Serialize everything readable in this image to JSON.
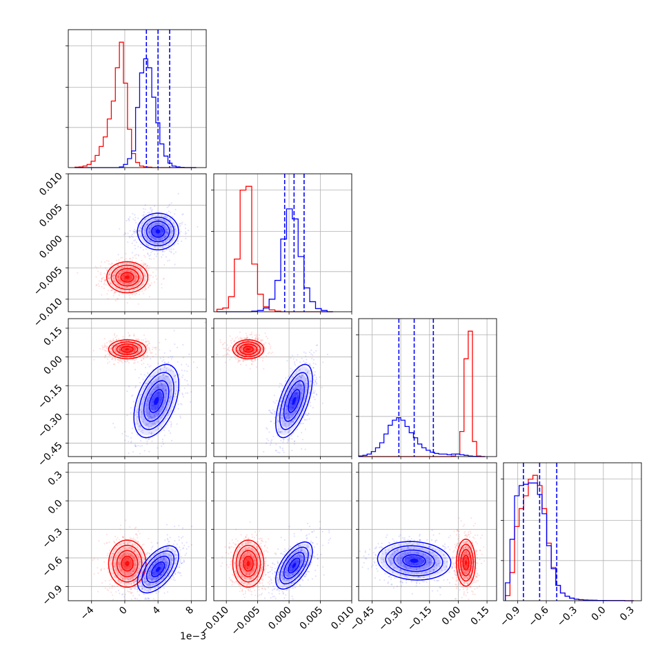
{
  "chart_data": {
    "type": "corner",
    "colors": {
      "red": "#ff0000",
      "blue": "#0000ff"
    },
    "grid": true,
    "parameters": [
      {
        "range": [
          -6.8,
          9.8
        ],
        "ticks": [
          -4,
          0,
          4,
          8
        ],
        "tick_labels": [
          "−4",
          "0",
          "4",
          "8"
        ],
        "offset_label": "1e−3"
      },
      {
        "range": [
          -0.012,
          0.01
        ],
        "ticks": [
          -0.01,
          -0.005,
          0.0,
          0.005,
          0.01
        ],
        "tick_labels": [
          "−0.010",
          "−0.005",
          "0.000",
          "0.005",
          "0.010"
        ]
      },
      {
        "range": [
          -0.52,
          0.2
        ],
        "ticks": [
          -0.45,
          -0.3,
          -0.15,
          0.0,
          0.15
        ],
        "tick_labels": [
          "−0.45",
          "−0.30",
          "−0.15",
          "0.00",
          "0.15"
        ]
      },
      {
        "range": [
          -1.05,
          0.4
        ],
        "ticks": [
          -0.9,
          -0.6,
          -0.3,
          0.0,
          0.3
        ],
        "tick_labels": [
          "−0.9",
          "−0.6",
          "−0.3",
          "0.0",
          "0.3"
        ]
      }
    ],
    "marginals": [
      {
        "param": 0,
        "quantile_lines_blue": [
          2.6,
          4.0,
          5.4
        ],
        "red": {
          "edges": [
            -6.0,
            8.6
          ],
          "counts": [
            0.3,
            0.5,
            1.2,
            2.5,
            5.0,
            9.5,
            16.5,
            24.0,
            38.0,
            52.0,
            78.0,
            98.0,
            66.0,
            30.0,
            11.0,
            4.0,
            1.2,
            0.6,
            0.3,
            0.0,
            0.0,
            0.0,
            0.0,
            0.0,
            0.0,
            0.0,
            0.0,
            0.0,
            0.0,
            0.0
          ]
        },
        "blue": {
          "edges": [
            -6.0,
            8.6
          ],
          "counts": [
            0.0,
            0.0,
            0.0,
            0.0,
            0.0,
            0.0,
            0.0,
            0.0,
            0.0,
            0.0,
            0.0,
            0.5,
            2.5,
            7.0,
            13.0,
            47.0,
            74.0,
            85.0,
            78.0,
            55.0,
            35.0,
            18.5,
            9.0,
            3.5,
            1.2,
            0.5,
            0.2,
            0.0,
            0.0,
            0.0
          ]
        }
      },
      {
        "param": 1,
        "quantile_lines_blue": [
          -0.0007,
          0.0008,
          0.0024
        ],
        "red": {
          "edges": [
            -0.0115,
            0.007
          ],
          "counts": [
            2,
            3,
            12,
            42,
            97,
            100,
            38,
            14,
            4,
            1.5,
            0.5,
            0,
            0,
            0,
            0,
            0,
            0,
            0,
            0,
            0
          ]
        },
        "blue": {
          "edges": [
            -0.0115,
            0.007
          ],
          "counts": [
            0,
            0,
            0,
            0,
            0,
            0,
            0.5,
            1,
            3,
            10,
            25,
            58,
            82,
            74,
            44,
            19,
            8,
            2.5,
            1,
            0
          ]
        }
      },
      {
        "param": 2,
        "quantile_lines_blue": [
          -0.31,
          -0.23,
          -0.13
        ],
        "red": {
          "edges": [
            -0.52,
            0.14
          ],
          "counts": [
            0,
            0,
            0,
            0,
            0,
            0,
            0,
            0,
            0,
            0,
            0,
            0,
            0,
            0,
            0,
            0,
            0,
            0,
            0,
            0,
            0,
            0,
            0.5,
            2,
            20,
            78,
            100,
            12,
            0.5,
            0
          ]
        },
        "blue": {
          "edges": [
            -0.52,
            0.14
          ],
          "counts": [
            0.5,
            1,
            2,
            4,
            7,
            11,
            18,
            25,
            29,
            31,
            29,
            24,
            19,
            15,
            10,
            7,
            5,
            3.5,
            2.5,
            2,
            2,
            1.5,
            2,
            2,
            1.5,
            1,
            0.5,
            0.2,
            0,
            0
          ]
        }
      },
      {
        "param": 3,
        "quantile_lines_blue": [
          -0.84,
          -0.67,
          -0.49
        ],
        "red": {
          "edges": [
            -1.03,
            0.32
          ],
          "counts": [
            4,
            22,
            58,
            72,
            82,
            95,
            98,
            90,
            72,
            45,
            26,
            12,
            6,
            3.5,
            2,
            1.2,
            0.8,
            0.5,
            0.4,
            0.3,
            0.2,
            0.2,
            0.1,
            0.1,
            0.1,
            0.1,
            0,
            0
          ]
        },
        "blue": {
          "edges": [
            -1.03,
            0.32
          ],
          "counts": [
            14,
            48,
            82,
            90,
            91,
            92,
            92,
            83,
            68,
            43,
            25,
            12,
            6,
            3.5,
            2,
            1.2,
            0.8,
            0.5,
            0.4,
            0.3,
            0.2,
            0.2,
            0.1,
            0.1,
            0.1,
            0.1,
            0,
            0
          ]
        }
      }
    ],
    "joint_distributions": [
      {
        "x_param": 0,
        "y_param": 1,
        "red": {
          "center": [
            0.3,
            -0.0065
          ],
          "spread": [
            1.1,
            0.0011
          ],
          "corr": 0.0
        },
        "blue": {
          "center": [
            4.0,
            0.0008
          ],
          "spread": [
            1.1,
            0.0013
          ],
          "corr": 0.0
        }
      },
      {
        "x_param": 0,
        "y_param": 2,
        "red": {
          "center": [
            0.3,
            0.04
          ],
          "spread": [
            1.0,
            0.022
          ],
          "corr": 0.0
        },
        "blue": {
          "center": [
            3.8,
            -0.23
          ],
          "spread": [
            1.2,
            0.085
          ],
          "corr": 0.45
        }
      },
      {
        "x_param": 1,
        "y_param": 2,
        "red": {
          "center": [
            -0.0065,
            0.04
          ],
          "spread": [
            0.0011,
            0.022
          ],
          "corr": 0.0
        },
        "blue": {
          "center": [
            0.0008,
            -0.23
          ],
          "spread": [
            0.0013,
            0.085
          ],
          "corr": 0.6
        }
      },
      {
        "x_param": 0,
        "y_param": 3,
        "red": {
          "center": [
            0.3,
            -0.66
          ],
          "spread": [
            1.0,
            0.11
          ],
          "corr": 0.0
        },
        "blue": {
          "center": [
            4.0,
            -0.72
          ],
          "spread": [
            1.1,
            0.11
          ],
          "corr": 0.55
        }
      },
      {
        "x_param": 1,
        "y_param": 3,
        "red": {
          "center": [
            -0.0065,
            -0.66
          ],
          "spread": [
            0.0011,
            0.11
          ],
          "corr": 0.0
        },
        "blue": {
          "center": [
            0.0008,
            -0.68
          ],
          "spread": [
            0.0013,
            0.11
          ],
          "corr": 0.6
        }
      },
      {
        "x_param": 2,
        "y_param": 3,
        "red": {
          "center": [
            0.04,
            -0.65
          ],
          "spread": [
            0.022,
            0.11
          ],
          "corr": 0.0
        },
        "blue": {
          "center": [
            -0.23,
            -0.63
          ],
          "spread": [
            0.085,
            0.09
          ],
          "corr": -0.1
        }
      }
    ]
  }
}
